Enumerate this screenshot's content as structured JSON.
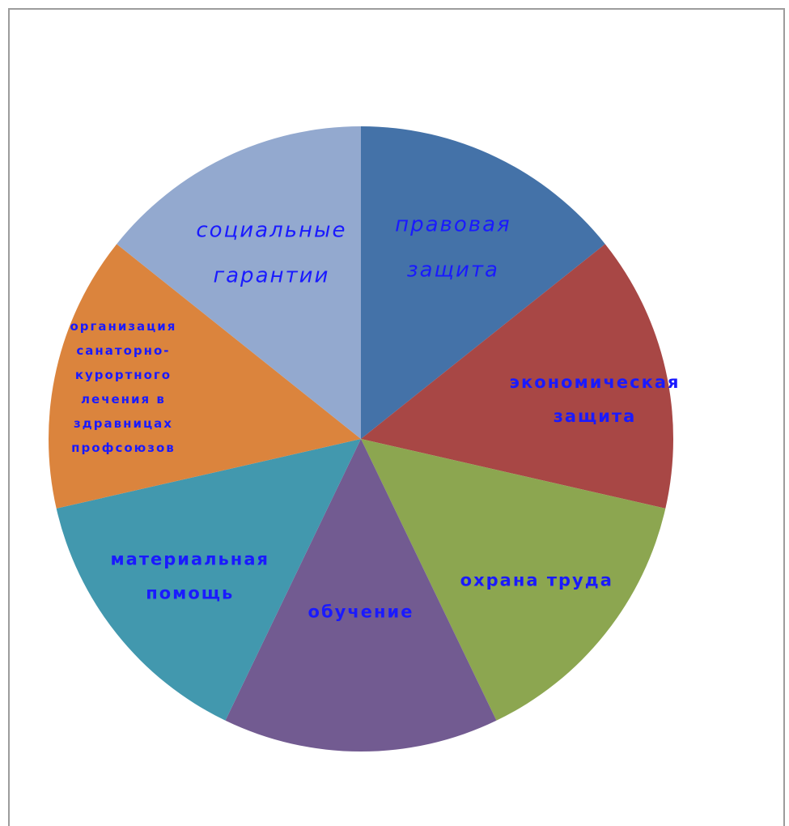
{
  "chart_data": {
    "type": "pie",
    "title": "",
    "start_angle_deg": 0,
    "direction": "clockwise",
    "slices": [
      {
        "label": "правовая защита",
        "lines": [
          "правовая",
          "защита"
        ],
        "value": 1,
        "color": "#4472A8",
        "style": "italic"
      },
      {
        "label": "экономическая защита",
        "lines": [
          "экономическая",
          "защита"
        ],
        "value": 1,
        "color": "#A84745",
        "style": "bold"
      },
      {
        "label": "охрана труда",
        "lines": [
          "охрана труда"
        ],
        "value": 1,
        "color": "#8CA650",
        "style": "bold"
      },
      {
        "label": "обучение",
        "lines": [
          "обучение"
        ],
        "value": 1,
        "color": "#725B91",
        "style": "bold"
      },
      {
        "label": "материальная помощь",
        "lines": [
          "материальная",
          "помощь"
        ],
        "value": 1,
        "color": "#4298AE",
        "style": "bold"
      },
      {
        "label": "организация санаторно-курортного лечения в здравницах профсоюзов",
        "lines": [
          "организация",
          "санаторно-",
          "курортного",
          "лечения в",
          "здравницах",
          "профсоюзов"
        ],
        "value": 1,
        "color": "#DB843D",
        "style": "bold-small"
      },
      {
        "label": "социальные гарантии",
        "lines": [
          "социальные",
          "гарантии"
        ],
        "value": 1,
        "color": "#93A9CF",
        "style": "italic"
      }
    ],
    "legend": "none",
    "data_labels": "inside"
  }
}
